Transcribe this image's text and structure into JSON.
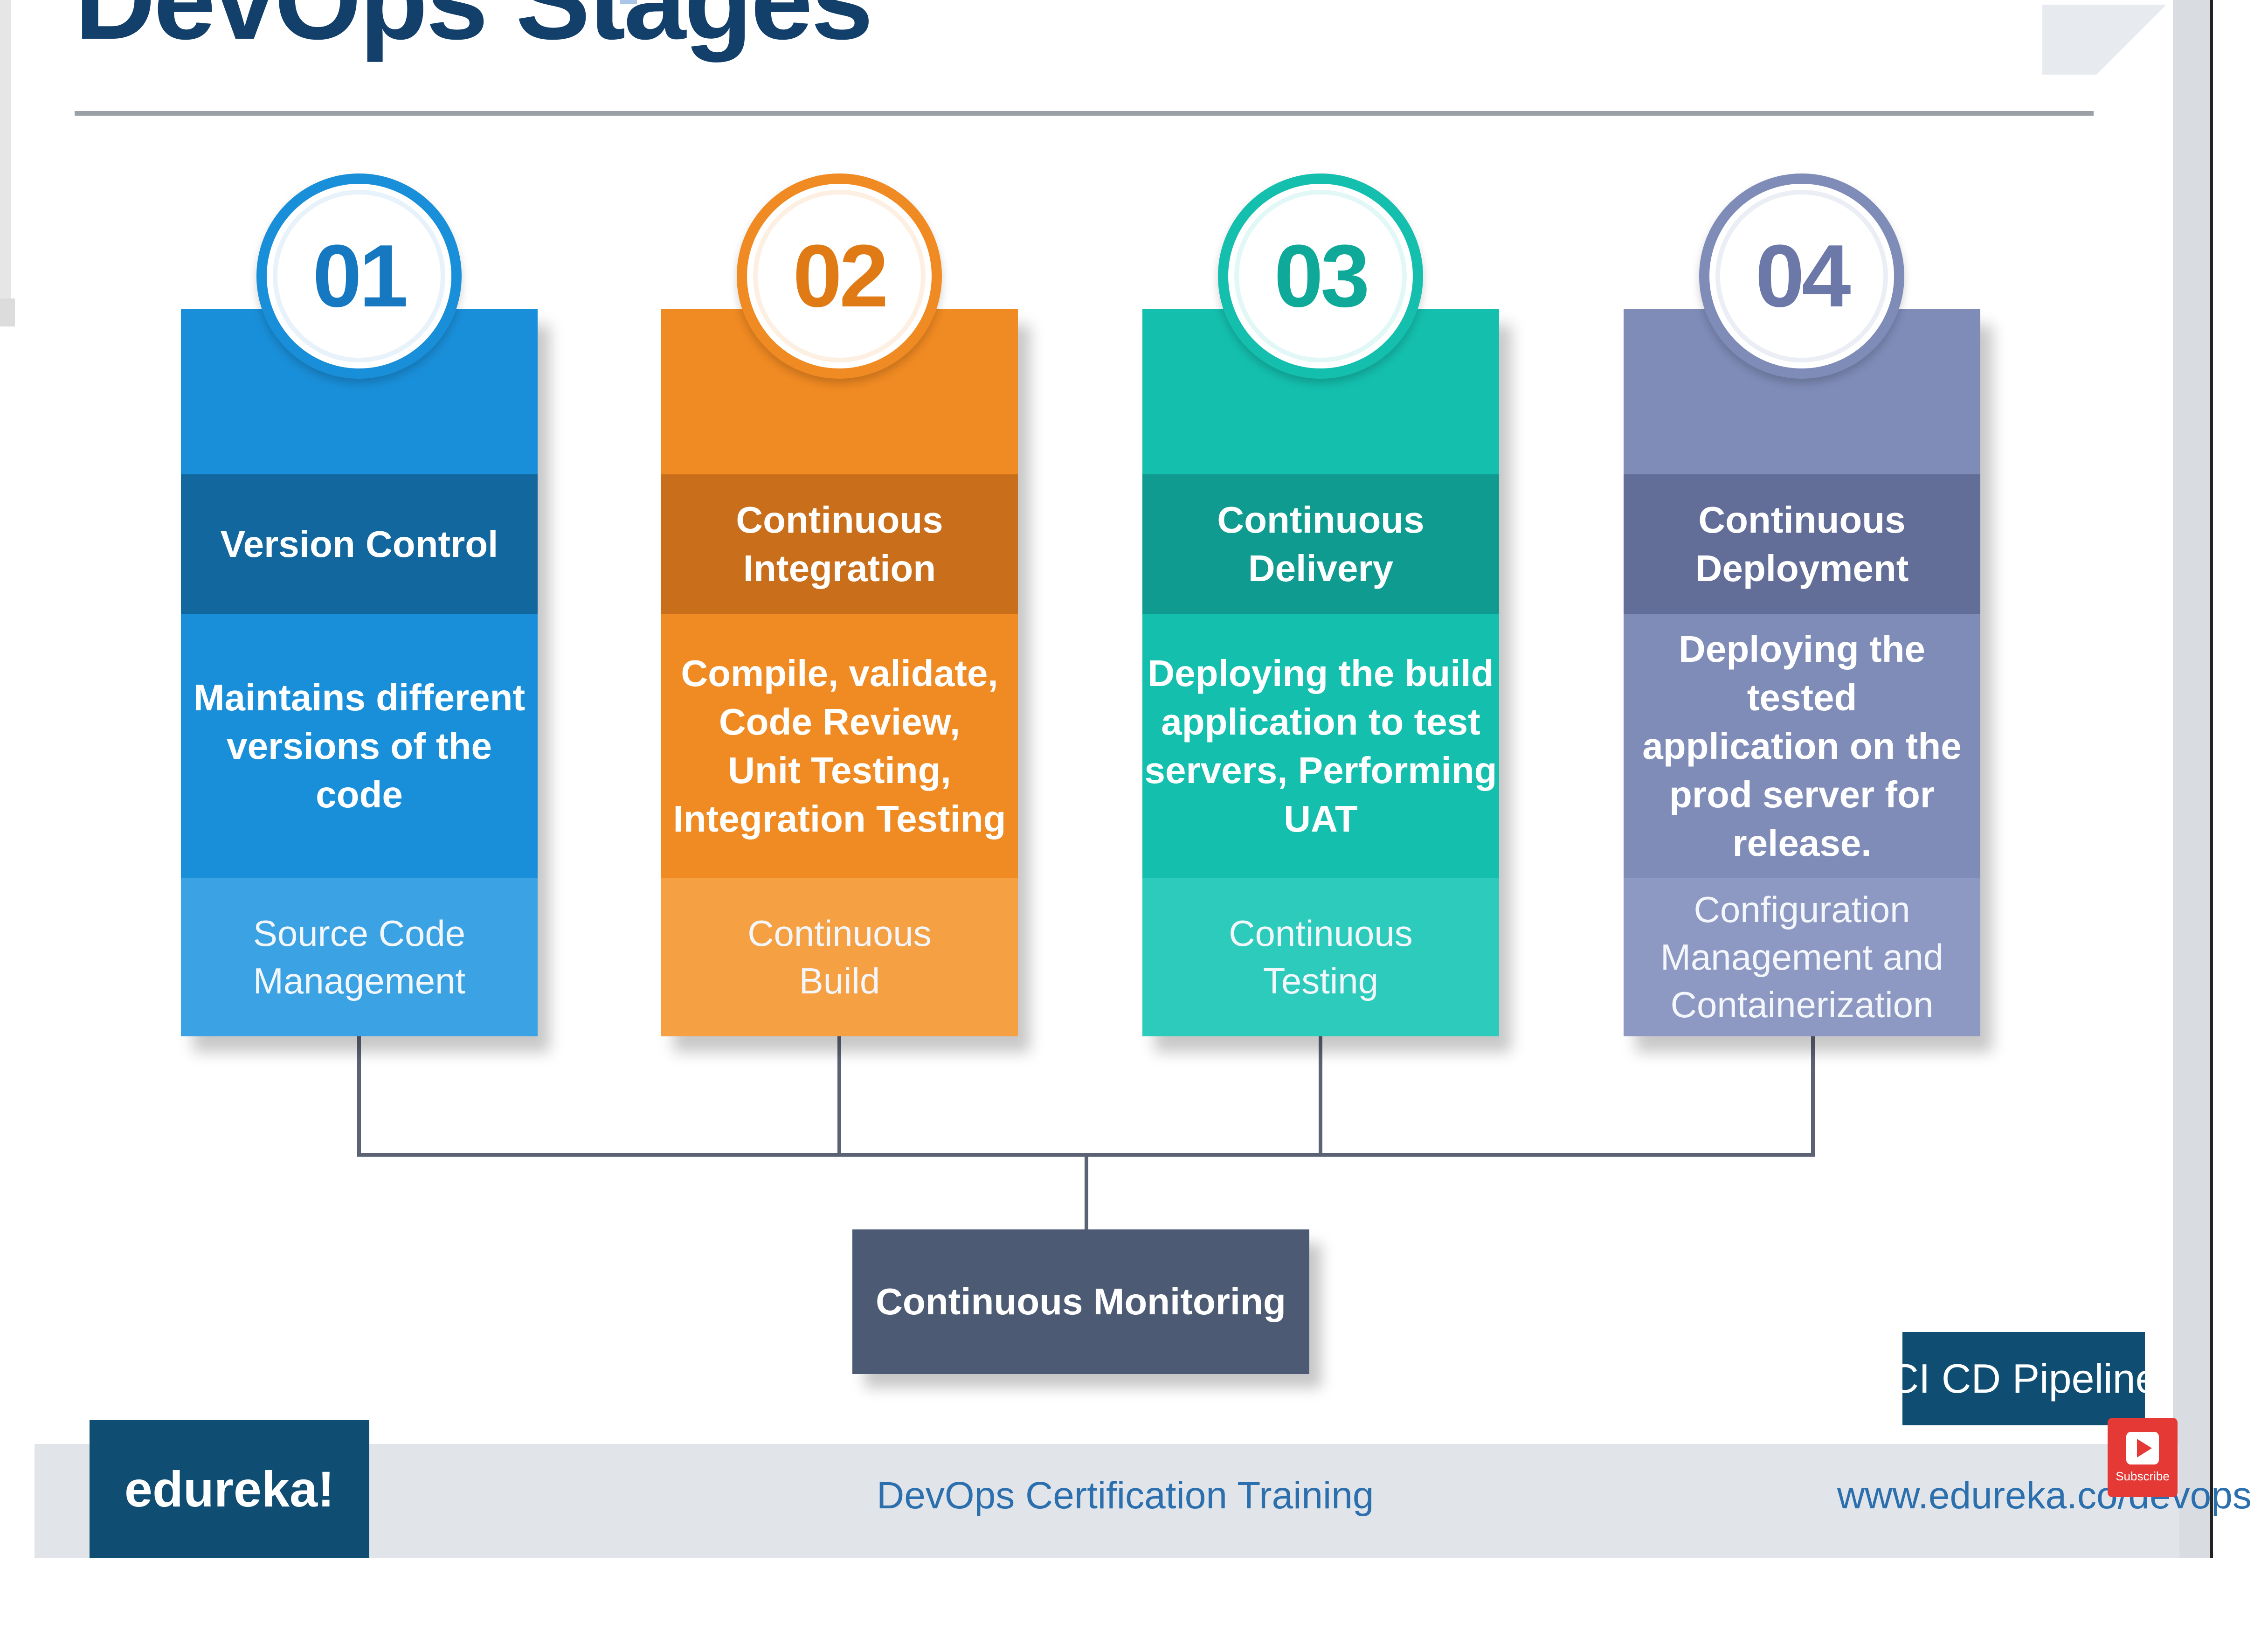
{
  "title": "DevOps Stages",
  "colors": {
    "blue": "#1a8fd9",
    "orange": "#f08a22",
    "teal": "#14bfae",
    "slate": "#7f8cb8",
    "navy": "#0f4d72",
    "monitor": "#4c5a73"
  },
  "stages": [
    {
      "number": "01",
      "name": "Version Control",
      "description": "Maintains different\nversions of the\ncode",
      "tool": "Source Code\nManagement"
    },
    {
      "number": "02",
      "name": "Continuous\nIntegration",
      "description": "Compile, validate,\nCode Review,\nUnit Testing,\nIntegration Testing",
      "tool": "Continuous\nBuild"
    },
    {
      "number": "03",
      "name": "Continuous\nDelivery",
      "description": "Deploying the build\napplication to test\nservers, Performing\nUAT",
      "tool": "Continuous\nTesting"
    },
    {
      "number": "04",
      "name": "Continuous\nDeployment",
      "description": "Deploying the tested\napplication on the\nprod server for\nrelease.",
      "tool": "Configuration\nManagement and\nContainerization"
    }
  ],
  "monitoring": "Continuous Monitoring",
  "badge_label": "CI CD Pipeline",
  "footer": {
    "logo": "edureka!",
    "course": "DevOps Certification Training",
    "url": "www.edureka.co/devops"
  },
  "subscribe": "Subscribe"
}
